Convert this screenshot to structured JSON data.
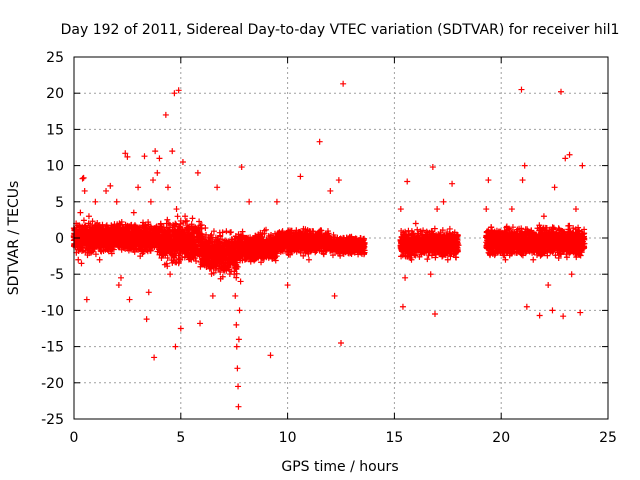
{
  "chart_data": {
    "type": "scatter",
    "title": "Day 192 of 2011, Sidereal Day-to-day VTEC variation (SDTVAR) for receiver hil1",
    "xlabel": "GPS time / hours",
    "ylabel": "SDTVAR / TECUs",
    "xlim": [
      0,
      25
    ],
    "ylim": [
      -25,
      25
    ],
    "x_ticks": [
      0,
      5,
      10,
      15,
      20,
      25
    ],
    "y_ticks": [
      -25,
      -20,
      -15,
      -10,
      -5,
      0,
      5,
      10,
      15,
      20,
      25
    ],
    "x_tick_labels": [
      "0",
      "5",
      "10",
      "15",
      "20",
      "25"
    ],
    "y_tick_labels": [
      "-25",
      "-20",
      "-15",
      "-10",
      "-5",
      "0",
      "5",
      "10",
      "15",
      "20",
      "25"
    ],
    "grid": true,
    "marker": "+",
    "color": "#ff0000",
    "series": [
      {
        "name": "SDTVAR",
        "points": [
          [
            0.0,
            -1.0
          ],
          [
            0.1,
            2.0
          ],
          [
            0.2,
            -3.0
          ],
          [
            0.3,
            3.5
          ],
          [
            0.35,
            -3.5
          ],
          [
            0.4,
            8.2
          ],
          [
            0.45,
            8.3
          ],
          [
            0.5,
            6.5
          ],
          [
            0.6,
            -8.5
          ],
          [
            0.7,
            3.0
          ],
          [
            0.8,
            -2.0
          ],
          [
            1.0,
            5.0
          ],
          [
            1.2,
            -3.0
          ],
          [
            1.5,
            6.5
          ],
          [
            1.7,
            7.2
          ],
          [
            1.8,
            -1.5
          ],
          [
            2.0,
            5.0
          ],
          [
            2.1,
            -6.5
          ],
          [
            2.2,
            -5.5
          ],
          [
            2.4,
            11.7
          ],
          [
            2.5,
            11.2
          ],
          [
            2.6,
            -8.5
          ],
          [
            2.8,
            3.5
          ],
          [
            3.0,
            7.0
          ],
          [
            3.1,
            -2.5
          ],
          [
            3.3,
            11.3
          ],
          [
            3.4,
            -11.2
          ],
          [
            3.5,
            -7.5
          ],
          [
            3.6,
            5.0
          ],
          [
            3.7,
            8.0
          ],
          [
            3.75,
            -16.5
          ],
          [
            3.8,
            12.0
          ],
          [
            3.9,
            9.0
          ],
          [
            4.0,
            11.0
          ],
          [
            4.1,
            -2.0
          ],
          [
            4.3,
            17.0
          ],
          [
            4.4,
            7.0
          ],
          [
            4.5,
            -5.0
          ],
          [
            4.6,
            12.0
          ],
          [
            4.7,
            20.0
          ],
          [
            4.75,
            -15.0
          ],
          [
            4.8,
            4.0
          ],
          [
            4.9,
            20.4
          ],
          [
            5.0,
            -12.5
          ],
          [
            5.1,
            10.5
          ],
          [
            5.2,
            3.0
          ],
          [
            5.3,
            -2.0
          ],
          [
            5.5,
            -1.0
          ],
          [
            5.8,
            9.0
          ],
          [
            5.9,
            -11.8
          ],
          [
            6.0,
            -1.0
          ],
          [
            6.2,
            -4.0
          ],
          [
            6.5,
            -8.0
          ],
          [
            6.7,
            7.0
          ],
          [
            7.0,
            -2.0
          ],
          [
            7.2,
            -1.5
          ],
          [
            7.4,
            -2.5
          ],
          [
            7.5,
            -5.0
          ],
          [
            7.55,
            -8.0
          ],
          [
            7.6,
            -12.0
          ],
          [
            7.62,
            -15.0
          ],
          [
            7.65,
            -18.0
          ],
          [
            7.68,
            -20.5
          ],
          [
            7.7,
            -23.3
          ],
          [
            7.72,
            -14.0
          ],
          [
            7.75,
            -10.0
          ],
          [
            7.8,
            -6.0
          ],
          [
            7.85,
            9.8
          ],
          [
            8.0,
            -3.0
          ],
          [
            8.2,
            5.0
          ],
          [
            8.5,
            0.0
          ],
          [
            9.0,
            -2.0
          ],
          [
            9.2,
            -16.2
          ],
          [
            9.5,
            5.0
          ],
          [
            10.0,
            -6.5
          ],
          [
            10.2,
            1.0
          ],
          [
            10.6,
            8.5
          ],
          [
            11.0,
            -3.0
          ],
          [
            11.5,
            13.3
          ],
          [
            12.0,
            6.5
          ],
          [
            12.2,
            -8.0
          ],
          [
            12.4,
            8.0
          ],
          [
            12.5,
            -14.5
          ],
          [
            12.6,
            21.3
          ],
          [
            13.0,
            -2.0
          ],
          [
            13.2,
            -1.5
          ],
          [
            13.4,
            -2.0
          ],
          [
            15.3,
            4.0
          ],
          [
            15.4,
            -9.5
          ],
          [
            15.5,
            -5.5
          ],
          [
            15.6,
            7.8
          ],
          [
            15.8,
            -3.0
          ],
          [
            16.0,
            2.0
          ],
          [
            16.2,
            -1.0
          ],
          [
            16.4,
            -2.0
          ],
          [
            16.7,
            -5.0
          ],
          [
            16.8,
            9.8
          ],
          [
            16.9,
            -10.5
          ],
          [
            17.0,
            4.0
          ],
          [
            17.3,
            5.0
          ],
          [
            17.5,
            -3.0
          ],
          [
            17.7,
            7.5
          ],
          [
            18.0,
            -1.0
          ],
          [
            19.3,
            4.0
          ],
          [
            19.4,
            8.0
          ],
          [
            19.5,
            -2.0
          ],
          [
            19.8,
            1.0
          ],
          [
            20.2,
            -3.0
          ],
          [
            20.5,
            4.0
          ],
          [
            20.8,
            -1.5
          ],
          [
            20.95,
            20.5
          ],
          [
            21.0,
            8.0
          ],
          [
            21.1,
            10.0
          ],
          [
            21.2,
            -9.5
          ],
          [
            21.5,
            -3.0
          ],
          [
            21.8,
            -10.7
          ],
          [
            22.0,
            3.0
          ],
          [
            22.2,
            -6.5
          ],
          [
            22.4,
            -10.0
          ],
          [
            22.5,
            7.0
          ],
          [
            22.8,
            20.2
          ],
          [
            22.9,
            -10.8
          ],
          [
            23.0,
            11.0
          ],
          [
            23.2,
            11.5
          ],
          [
            23.3,
            -5.0
          ],
          [
            23.5,
            4.0
          ],
          [
            23.7,
            -10.3
          ],
          [
            23.8,
            10.0
          ]
        ],
        "dense_segments": [
          {
            "x_start": 0.0,
            "x_end": 4.0,
            "center": 0.0,
            "half_width": 2.3
          },
          {
            "x_start": 4.0,
            "x_end": 6.0,
            "center": -0.5,
            "half_width": 3.3
          },
          {
            "x_start": 6.0,
            "x_end": 7.7,
            "center": -2.2,
            "half_width": 3.3
          },
          {
            "x_start": 7.7,
            "x_end": 9.5,
            "center": -1.3,
            "half_width": 2.3
          },
          {
            "x_start": 9.5,
            "x_end": 12.0,
            "center": -0.5,
            "half_width": 1.8
          },
          {
            "x_start": 12.0,
            "x_end": 13.6,
            "center": -1.0,
            "half_width": 1.4
          },
          {
            "x_start": 15.3,
            "x_end": 18.0,
            "center": -0.8,
            "half_width": 2.0
          },
          {
            "x_start": 19.3,
            "x_end": 23.9,
            "center": -0.5,
            "half_width": 2.2
          }
        ]
      }
    ]
  }
}
